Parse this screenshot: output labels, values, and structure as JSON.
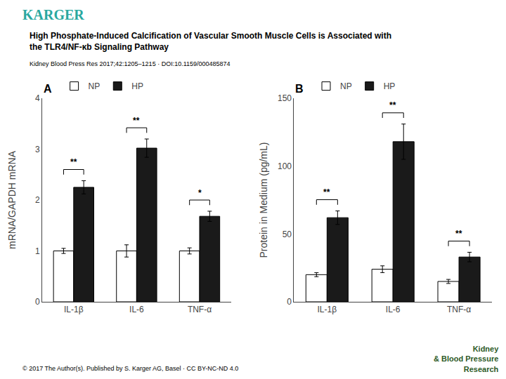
{
  "title": "High Phosphate-Induced Calcification of Vascular Smooth Muscle Cells is Associated with\nthe TLR4/NF-κb Signaling Pathway",
  "subtitle": "Kidney Blood Press Res 2017;42:1205–1215 · DOI:10.1159/000485874",
  "annotations": [
    {
      "text": "KARGER",
      "color": "#2aa8a0"
    },
    {
      "text": "© 2017 The Author(s). Published by S. Karger AG, Basel · CC BY-NC-ND 4.0"
    },
    {
      "text": "Kidney\n& Blood Pressure\nResearch",
      "color": "#2d5a27"
    }
  ],
  "chart_data": [
    {
      "type": "bar",
      "title": "A",
      "categories": [
        "IL-1β",
        "IL-6",
        "TNF-α"
      ],
      "series": [
        {
          "name": "NP",
          "color": "#ffffff",
          "values": [
            1.0,
            1.0,
            1.0
          ],
          "errors": [
            0.05,
            0.12,
            0.06
          ]
        },
        {
          "name": "HP",
          "color": "#1a1a1a",
          "values": [
            2.25,
            3.02,
            1.68
          ],
          "errors": [
            0.13,
            0.18,
            0.1
          ]
        }
      ],
      "ylabel": "mRNA/GAPDH mRNA",
      "ylim": [
        0,
        4
      ],
      "yticks": [
        0,
        1,
        2,
        3,
        4
      ],
      "annotations": [
        "**",
        "**",
        "*"
      ],
      "legend": "upper left",
      "grid": false
    },
    {
      "type": "bar",
      "title": "B",
      "categories": [
        "IL-1β",
        "IL-6",
        "TNF-α"
      ],
      "series": [
        {
          "name": "NP",
          "color": "#ffffff",
          "values": [
            20.0,
            24.0,
            15.0
          ],
          "errors": [
            1.5,
            2.5,
            1.5
          ]
        },
        {
          "name": "HP",
          "color": "#1a1a1a",
          "values": [
            62.0,
            118.0,
            33.0
          ],
          "errors": [
            5.0,
            13.0,
            3.5
          ]
        }
      ],
      "ylabel": "Protein in Medium (pg/mL)",
      "ylim": [
        0,
        150
      ],
      "yticks": [
        0,
        50,
        100,
        150
      ],
      "annotations": [
        "**",
        "**",
        "**"
      ],
      "legend": "upper left",
      "grid": false
    }
  ]
}
